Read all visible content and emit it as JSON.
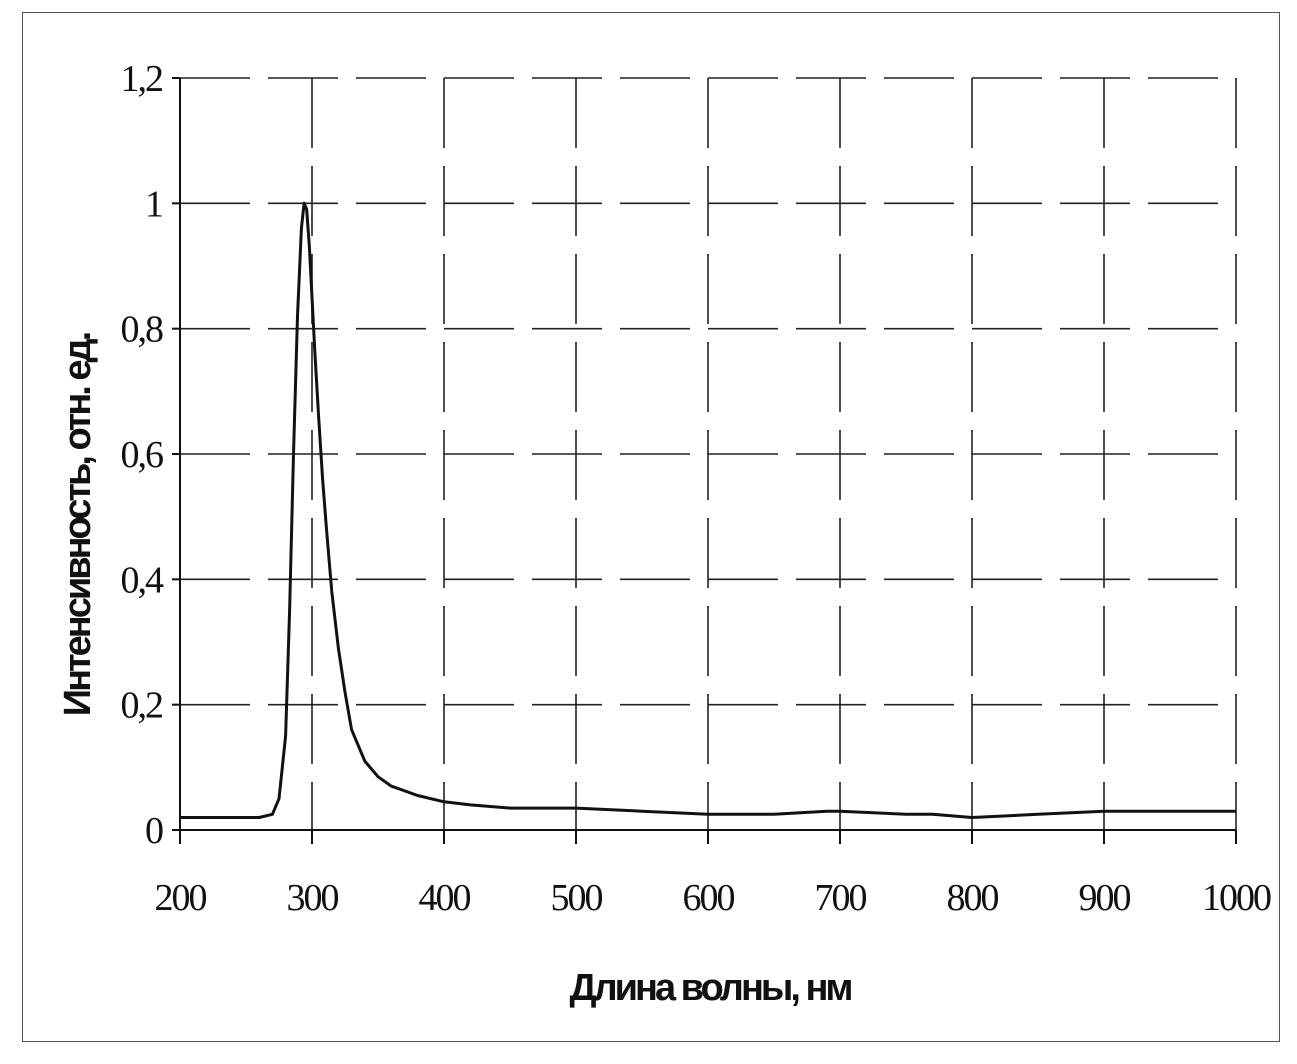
{
  "chart_data": {
    "type": "line",
    "title": "",
    "xlabel": "Длина волны, нм",
    "ylabel": "Интенсивность, отн. ед.",
    "xlim": [
      200,
      1000
    ],
    "ylim": [
      0,
      1.2
    ],
    "x_ticks": [
      200,
      300,
      400,
      500,
      600,
      700,
      800,
      900,
      1000
    ],
    "x_tick_labels": [
      "200",
      "300",
      "400",
      "500",
      "600",
      "700",
      "800",
      "900",
      "1000"
    ],
    "y_ticks": [
      0,
      0.2,
      0.4,
      0.6,
      0.8,
      1.0,
      1.2
    ],
    "y_tick_labels": [
      "0",
      "0,2",
      "0,4",
      "0,6",
      "0,8",
      "1",
      "1,2"
    ],
    "grid": true,
    "legend": "none",
    "series": [
      {
        "x": [
          200,
          220,
          240,
          260,
          270,
          275,
          280,
          283,
          286,
          289,
          292,
          294,
          296,
          298,
          300,
          302,
          305,
          308,
          311,
          315,
          320,
          325,
          330,
          340,
          350,
          360,
          380,
          400,
          420,
          450,
          480,
          500,
          550,
          600,
          650,
          690,
          700,
          750,
          770,
          800,
          850,
          900,
          950,
          1000
        ],
        "y": [
          0.02,
          0.02,
          0.02,
          0.02,
          0.025,
          0.05,
          0.15,
          0.35,
          0.6,
          0.82,
          0.96,
          1.0,
          0.99,
          0.93,
          0.85,
          0.77,
          0.66,
          0.56,
          0.48,
          0.38,
          0.29,
          0.22,
          0.16,
          0.11,
          0.085,
          0.07,
          0.055,
          0.045,
          0.04,
          0.035,
          0.035,
          0.035,
          0.03,
          0.025,
          0.025,
          0.03,
          0.03,
          0.025,
          0.025,
          0.02,
          0.025,
          0.03,
          0.03,
          0.03
        ]
      }
    ]
  }
}
